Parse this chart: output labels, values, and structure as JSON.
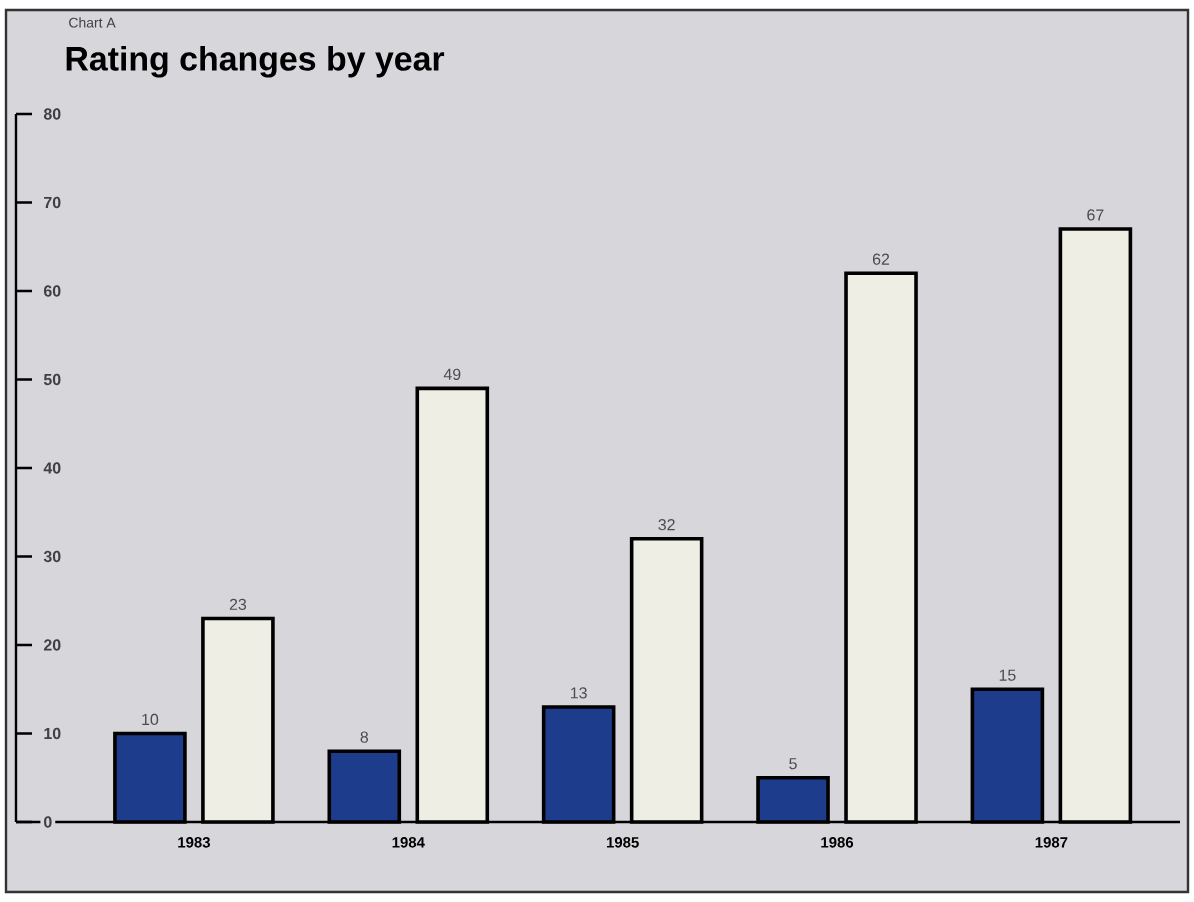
{
  "chart_data": {
    "type": "bar",
    "subtitle": "Chart A",
    "title": "Rating changes by year",
    "categories": [
      "1983",
      "1984",
      "1985",
      "1986",
      "1987"
    ],
    "series": [
      {
        "color": "#1d3d8c",
        "values": [
          10,
          8,
          13,
          5,
          15
        ]
      },
      {
        "color": "#eeeee4",
        "values": [
          23,
          49,
          32,
          62,
          67
        ]
      }
    ],
    "ylim": [
      0,
      80
    ],
    "yticks": [
      0,
      10,
      20,
      30,
      40,
      50,
      60,
      70,
      80
    ],
    "data_labels": true,
    "grid": false
  }
}
